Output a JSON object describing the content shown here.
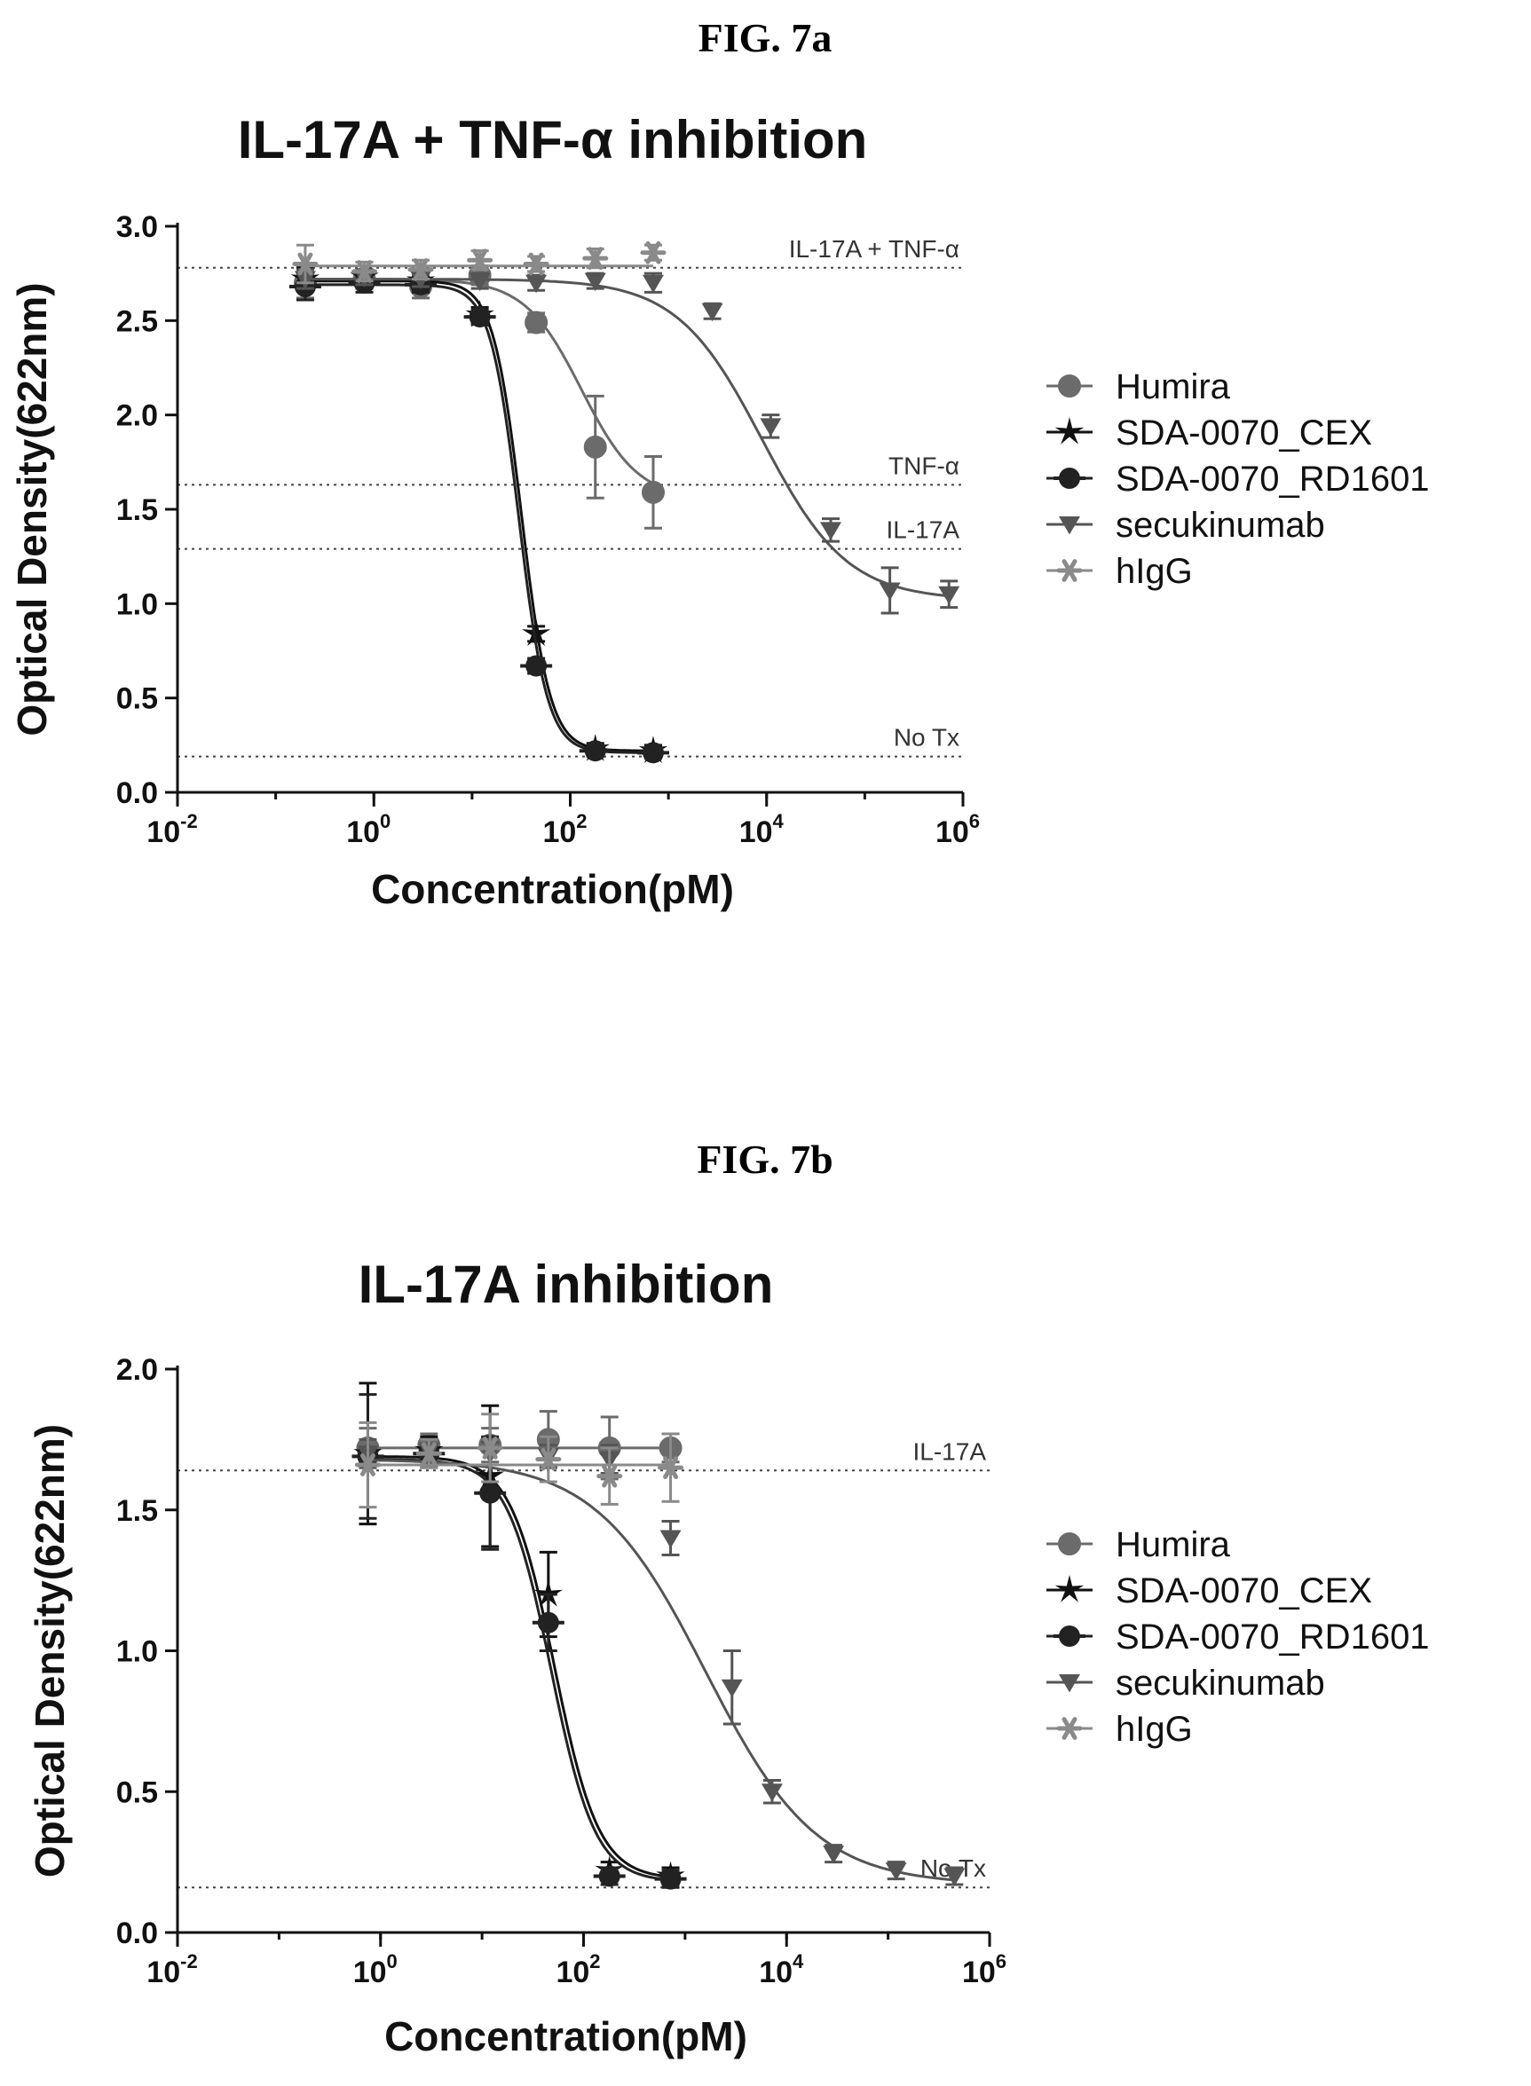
{
  "figures": [
    {
      "label": "FIG. 7a"
    },
    {
      "label": "FIG. 7b"
    }
  ],
  "series_styles": {
    "Humira": {
      "color": "#6b6b6b",
      "marker": "circle"
    },
    "SDA-0070_CEX": {
      "color": "#111111",
      "marker": "star"
    },
    "SDA-0070_RD1601": {
      "color": "#222222",
      "marker": "circle-bar"
    },
    "secukinumab": {
      "color": "#555555",
      "marker": "triangle-down"
    },
    "hIgG": {
      "color": "#8a8a8a",
      "marker": "asterisk"
    }
  },
  "chart_data": [
    {
      "type": "scatter",
      "title": "IL-17A + TNF-α inhibition",
      "xlabel": "Concentration(pM)",
      "ylabel": "Optical Density(622nm)",
      "x_scale": "log",
      "xlim": [
        0.01,
        1000000
      ],
      "ylim": [
        0,
        3.0
      ],
      "x_ticks": [
        {
          "value": 0.01,
          "base": "10",
          "exp": "-2"
        },
        {
          "value": 1,
          "base": "10",
          "exp": "0"
        },
        {
          "value": 100,
          "base": "10",
          "exp": "2"
        },
        {
          "value": 10000,
          "base": "10",
          "exp": "4"
        },
        {
          "value": 1000000,
          "base": "10",
          "exp": "6"
        }
      ],
      "y_ticks": [
        "0.0",
        "0.5",
        "1.0",
        "1.5",
        "2.0",
        "2.5",
        "3.0"
      ],
      "legend_position": "right",
      "reference_lines": [
        {
          "label": "IL-17A + TNF-α",
          "y": 2.78
        },
        {
          "label": "TNF-α",
          "y": 1.63
        },
        {
          "label": "IL-17A",
          "y": 1.29
        },
        {
          "label": "No Tx",
          "y": 0.19
        }
      ],
      "series": [
        {
          "name": "Humira",
          "curve": {
            "top": 2.72,
            "bottom": 1.55,
            "ec50": 130,
            "hill": 1.5
          },
          "x": [
            0.2,
            0.8,
            3,
            12,
            45,
            180,
            700
          ],
          "y": [
            2.7,
            2.72,
            2.68,
            2.74,
            2.49,
            1.83,
            1.59
          ],
          "err": [
            0.08,
            0.05,
            0.06,
            0.05,
            0.05,
            0.27,
            0.19
          ]
        },
        {
          "name": "SDA-0070_CEX",
          "curve": {
            "top": 2.71,
            "bottom": 0.22,
            "ec50": 32,
            "hill": 3.0
          },
          "x": [
            0.2,
            0.8,
            3,
            12,
            45,
            180,
            700
          ],
          "y": [
            2.72,
            2.73,
            2.71,
            2.53,
            0.84,
            0.23,
            0.22
          ],
          "err": [
            0.06,
            0.04,
            0.05,
            0.04,
            0.04,
            0.03,
            0.03
          ]
        },
        {
          "name": "SDA-0070_RD1601",
          "curve": {
            "top": 2.69,
            "bottom": 0.21,
            "ec50": 30,
            "hill": 3.0
          },
          "x": [
            0.2,
            0.8,
            3,
            12,
            45,
            180,
            700
          ],
          "y": [
            2.68,
            2.7,
            2.69,
            2.52,
            0.67,
            0.22,
            0.21
          ],
          "err": [
            0.07,
            0.05,
            0.04,
            0.04,
            0.04,
            0.03,
            0.03
          ]
        },
        {
          "name": "secukinumab",
          "curve": {
            "top": 2.72,
            "bottom": 1.02,
            "ec50": 9000,
            "hill": 1.0
          },
          "x": [
            0.2,
            0.8,
            3,
            12,
            45,
            180,
            700,
            2800,
            11000,
            45000,
            180000,
            720000
          ],
          "y": [
            2.72,
            2.73,
            2.72,
            2.71,
            2.7,
            2.71,
            2.7,
            2.55,
            1.94,
            1.39,
            1.07,
            1.05
          ],
          "err": [
            0.05,
            0.04,
            0.04,
            0.04,
            0.04,
            0.04,
            0.05,
            0.04,
            0.06,
            0.06,
            0.12,
            0.07
          ]
        },
        {
          "name": "hIgG",
          "curve": {
            "top": 2.79,
            "bottom": 2.79,
            "ec50": 100,
            "hill": 1.0
          },
          "x": [
            0.2,
            0.8,
            3,
            12,
            45,
            180,
            700
          ],
          "y": [
            2.8,
            2.76,
            2.77,
            2.82,
            2.8,
            2.83,
            2.86
          ],
          "err": [
            0.1,
            0.05,
            0.05,
            0.05,
            0.04,
            0.05,
            0.04
          ]
        }
      ]
    },
    {
      "type": "scatter",
      "title": "IL-17A inhibition",
      "xlabel": "Concentration(pM)",
      "ylabel": "Optical Density(622nm)",
      "x_scale": "log",
      "xlim": [
        0.01,
        1000000
      ],
      "ylim": [
        0,
        2.0
      ],
      "x_ticks": [
        {
          "value": 0.01,
          "base": "10",
          "exp": "-2"
        },
        {
          "value": 1,
          "base": "10",
          "exp": "0"
        },
        {
          "value": 100,
          "base": "10",
          "exp": "2"
        },
        {
          "value": 10000,
          "base": "10",
          "exp": "4"
        },
        {
          "value": 1000000,
          "base": "10",
          "exp": "6"
        }
      ],
      "y_ticks": [
        "0.0",
        "0.5",
        "1.0",
        "1.5",
        "2.0"
      ],
      "legend_position": "right",
      "reference_lines": [
        {
          "label": "IL-17A",
          "y": 1.64
        },
        {
          "label": "No Tx",
          "y": 0.16
        }
      ],
      "series": [
        {
          "name": "Humira",
          "curve": {
            "top": 1.72,
            "bottom": 1.72,
            "ec50": 100,
            "hill": 1.0
          },
          "x": [
            0.75,
            3,
            12,
            45,
            180,
            720
          ],
          "y": [
            1.72,
            1.73,
            1.73,
            1.75,
            1.72,
            1.72
          ],
          "err": [
            0.07,
            0.04,
            0.06,
            0.1,
            0.11,
            0.05
          ]
        },
        {
          "name": "SDA-0070_CEX",
          "curve": {
            "top": 1.69,
            "bottom": 0.19,
            "ec50": 52,
            "hill": 2.0
          },
          "x": [
            0.75,
            3,
            12,
            45,
            180,
            720
          ],
          "y": [
            1.7,
            1.71,
            1.62,
            1.2,
            0.22,
            0.2
          ],
          "err": [
            0.25,
            0.05,
            0.25,
            0.15,
            0.03,
            0.03
          ]
        },
        {
          "name": "SDA-0070_RD1601",
          "curve": {
            "top": 1.68,
            "bottom": 0.18,
            "ec50": 48,
            "hill": 2.0
          },
          "x": [
            0.75,
            3,
            12,
            45,
            180,
            720
          ],
          "y": [
            1.69,
            1.7,
            1.56,
            1.1,
            0.2,
            0.19
          ],
          "err": [
            0.22,
            0.05,
            0.2,
            0.1,
            0.03,
            0.03
          ]
        },
        {
          "name": "secukinumab",
          "curve": {
            "top": 1.68,
            "bottom": 0.17,
            "ec50": 1600,
            "hill": 0.8
          },
          "x": [
            0.75,
            3,
            12,
            45,
            180,
            720,
            2900,
            7200,
            29000,
            120000,
            450000
          ],
          "y": [
            1.7,
            1.71,
            1.7,
            1.69,
            1.68,
            1.4,
            0.87,
            0.5,
            0.28,
            0.22,
            0.2
          ],
          "err": [
            0.05,
            0.04,
            0.04,
            0.04,
            0.05,
            0.06,
            0.13,
            0.04,
            0.03,
            0.03,
            0.03
          ]
        },
        {
          "name": "hIgG",
          "curve": {
            "top": 1.66,
            "bottom": 1.66,
            "ec50": 100,
            "hill": 1.0
          },
          "x": [
            0.75,
            3,
            12,
            45,
            180,
            720
          ],
          "y": [
            1.66,
            1.7,
            1.72,
            1.68,
            1.62,
            1.65
          ],
          "err": [
            0.15,
            0.05,
            0.12,
            0.08,
            0.1,
            0.12
          ]
        }
      ]
    }
  ]
}
